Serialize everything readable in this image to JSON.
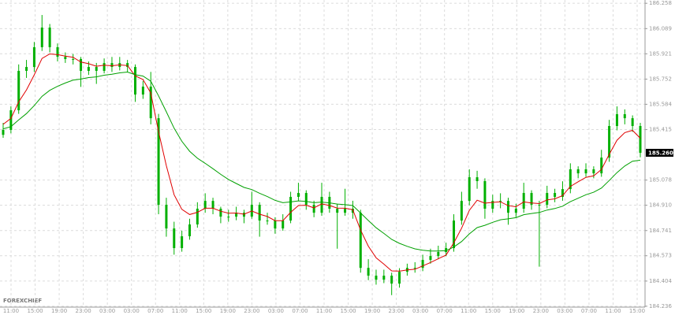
{
  "chart_data": {
    "type": "candlestick",
    "watermark": "FOREXCHIEF",
    "last_price_label": "185.260",
    "candle_color": "#00b000",
    "ylim": [
      184.23,
      186.28
    ],
    "yticks": [
      186.258,
      186.089,
      185.921,
      185.752,
      185.584,
      185.415,
      185.078,
      {
        "value": 184.91,
        "label": "184.910"
      },
      184.741,
      184.573,
      184.404,
      184.236
    ],
    "grid": true,
    "xlabels": [
      "11:00",
      "15:00",
      "19:00",
      "23:00",
      "03:00",
      "03:00",
      "07:00",
      "11:00",
      "15:00",
      "19:00",
      "23:00",
      "03:00",
      "07:00",
      "11:00",
      "15:00",
      "19:00",
      "23:00",
      "03:00",
      "07:00",
      "11:00",
      "15:00",
      "19:00",
      "23:00",
      "03:00",
      "07:00",
      "11:00",
      "15:00"
    ],
    "candles": [
      [
        185.38,
        185.46,
        185.36,
        185.413
      ],
      [
        185.413,
        185.57,
        185.39,
        185.544
      ],
      [
        185.544,
        185.85,
        185.52,
        185.807
      ],
      [
        185.807,
        185.88,
        185.76,
        185.833
      ],
      [
        185.833,
        186.0,
        185.8,
        185.965
      ],
      [
        185.965,
        186.18,
        185.94,
        186.096
      ],
      [
        186.096,
        186.12,
        185.93,
        185.965
      ],
      [
        185.965,
        185.99,
        185.87,
        185.901
      ],
      [
        185.901,
        185.93,
        185.86,
        185.886
      ],
      [
        185.886,
        185.92,
        185.85,
        185.886
      ],
      [
        185.886,
        185.9,
        185.7,
        185.807
      ],
      [
        185.807,
        185.87,
        185.78,
        185.833
      ],
      [
        185.833,
        185.86,
        185.72,
        185.807
      ],
      [
        185.807,
        185.89,
        185.79,
        185.859
      ],
      [
        185.859,
        185.9,
        185.8,
        185.833
      ],
      [
        185.833,
        185.9,
        185.81,
        185.859
      ],
      [
        185.859,
        185.88,
        185.8,
        185.833
      ],
      [
        185.833,
        185.85,
        185.6,
        185.649
      ],
      [
        185.649,
        185.74,
        185.62,
        185.702
      ],
      [
        185.702,
        185.8,
        185.45,
        185.491
      ],
      [
        185.491,
        185.52,
        184.85,
        184.913
      ],
      [
        184.913,
        184.96,
        184.7,
        184.755
      ],
      [
        184.755,
        184.8,
        184.58,
        184.624
      ],
      [
        184.624,
        184.74,
        184.6,
        184.703
      ],
      [
        184.703,
        184.82,
        184.68,
        184.782
      ],
      [
        184.782,
        184.93,
        184.76,
        184.887
      ],
      [
        184.887,
        184.99,
        184.86,
        184.939
      ],
      [
        184.939,
        184.96,
        184.85,
        184.887
      ],
      [
        184.887,
        184.9,
        184.79,
        184.834
      ],
      [
        184.834,
        184.88,
        184.8,
        184.834
      ],
      [
        184.834,
        184.9,
        184.81,
        184.86
      ],
      [
        184.86,
        184.88,
        184.79,
        184.834
      ],
      [
        184.834,
        185.0,
        184.82,
        184.913
      ],
      [
        184.913,
        184.93,
        184.7,
        184.808
      ],
      [
        184.808,
        184.86,
        184.78,
        184.808
      ],
      [
        184.808,
        184.83,
        184.72,
        184.755
      ],
      [
        184.755,
        184.85,
        184.74,
        184.808
      ],
      [
        184.808,
        185.0,
        184.79,
        184.966
      ],
      [
        184.966,
        185.06,
        184.94,
        184.992
      ],
      [
        184.992,
        185.01,
        184.88,
        184.913
      ],
      [
        184.913,
        184.94,
        184.83,
        184.86
      ],
      [
        184.86,
        185.06,
        184.84,
        184.966
      ],
      [
        184.966,
        185.0,
        184.86,
        184.887
      ],
      [
        184.887,
        184.92,
        184.62,
        184.86
      ],
      [
        184.86,
        185.02,
        184.84,
        184.887
      ],
      [
        184.887,
        184.94,
        184.82,
        184.86
      ],
      [
        184.86,
        184.88,
        184.46,
        184.492
      ],
      [
        184.492,
        184.55,
        184.41,
        184.44
      ],
      [
        184.44,
        184.48,
        184.38,
        184.413
      ],
      [
        184.413,
        184.48,
        184.39,
        184.44
      ],
      [
        184.44,
        184.46,
        184.31,
        184.387
      ],
      [
        184.387,
        184.49,
        184.36,
        184.466
      ],
      [
        184.466,
        184.52,
        184.44,
        184.492
      ],
      [
        184.492,
        184.53,
        184.46,
        184.492
      ],
      [
        184.492,
        184.58,
        184.47,
        184.545
      ],
      [
        184.545,
        184.62,
        184.52,
        184.571
      ],
      [
        184.571,
        184.64,
        184.55,
        184.598
      ],
      [
        184.598,
        184.66,
        184.57,
        184.624
      ],
      [
        184.624,
        184.85,
        184.6,
        184.808
      ],
      [
        184.808,
        185.0,
        184.78,
        184.939
      ],
      [
        184.939,
        185.15,
        184.91,
        185.097
      ],
      [
        185.097,
        185.14,
        185.02,
        185.071
      ],
      [
        185.071,
        185.09,
        184.82,
        184.887
      ],
      [
        184.887,
        184.98,
        184.86,
        184.939
      ],
      [
        184.939,
        184.99,
        184.89,
        184.939
      ],
      [
        184.939,
        184.96,
        184.78,
        184.86
      ],
      [
        184.86,
        184.92,
        184.83,
        184.887
      ],
      [
        184.887,
        185.06,
        184.86,
        184.992
      ],
      [
        184.992,
        185.01,
        184.88,
        184.913
      ],
      [
        184.913,
        184.94,
        184.5,
        184.913
      ],
      [
        184.913,
        185.04,
        184.89,
        184.992
      ],
      [
        184.992,
        185.02,
        184.93,
        184.966
      ],
      [
        184.966,
        185.07,
        184.94,
        185.018
      ],
      [
        185.018,
        185.19,
        184.99,
        185.15
      ],
      [
        185.15,
        185.17,
        185.09,
        185.123
      ],
      [
        185.123,
        185.19,
        185.1,
        185.15
      ],
      [
        185.15,
        185.17,
        185.09,
        185.123
      ],
      [
        185.123,
        185.28,
        185.1,
        185.228
      ],
      [
        185.228,
        185.48,
        185.2,
        185.439
      ],
      [
        185.439,
        185.57,
        185.41,
        185.518
      ],
      [
        185.518,
        185.55,
        185.45,
        185.491
      ],
      [
        185.491,
        185.51,
        185.4,
        185.439
      ],
      [
        185.439,
        185.46,
        185.23,
        185.26
      ]
    ],
    "series": [
      {
        "color": "#e00000",
        "values": [
          185.45,
          185.49,
          185.6,
          185.68,
          185.78,
          185.89,
          185.92,
          185.915,
          185.905,
          185.898,
          185.866,
          185.855,
          185.838,
          185.845,
          185.841,
          185.847,
          185.842,
          185.774,
          185.749,
          185.659,
          185.4,
          185.175,
          184.98,
          184.883,
          184.848,
          184.863,
          184.89,
          184.89,
          184.87,
          184.857,
          184.858,
          184.85,
          184.872,
          184.85,
          184.835,
          184.807,
          184.807,
          184.863,
          184.908,
          184.91,
          184.893,
          184.919,
          184.908,
          184.891,
          184.89,
          184.88,
          184.744,
          184.637,
          184.559,
          184.517,
          184.472,
          184.47,
          184.478,
          184.483,
          184.505,
          184.528,
          184.553,
          184.578,
          184.659,
          184.757,
          184.876,
          184.944,
          184.924,
          184.929,
          184.933,
          184.907,
          184.9,
          184.932,
          184.925,
          184.921,
          184.946,
          184.953,
          184.975,
          185.036,
          185.067,
          185.096,
          185.106,
          185.149,
          185.25,
          185.344,
          185.395,
          185.41,
          185.357
        ]
      },
      {
        "color": "#00a000",
        "values": [
          185.42,
          185.435,
          185.48,
          185.522,
          185.575,
          185.637,
          185.677,
          185.704,
          185.726,
          185.745,
          185.752,
          185.762,
          185.767,
          185.778,
          185.785,
          185.794,
          185.799,
          185.781,
          185.772,
          185.738,
          185.64,
          185.534,
          185.424,
          185.337,
          185.27,
          185.224,
          185.19,
          185.154,
          185.116,
          185.082,
          185.055,
          185.029,
          185.015,
          184.99,
          184.968,
          184.943,
          184.927,
          184.932,
          184.939,
          184.936,
          184.927,
          184.931,
          184.926,
          184.918,
          184.914,
          184.908,
          184.858,
          184.808,
          184.76,
          184.722,
          184.682,
          184.656,
          184.636,
          184.619,
          184.61,
          184.605,
          184.605,
          184.607,
          184.631,
          184.668,
          184.719,
          184.761,
          184.776,
          184.796,
          184.813,
          184.819,
          184.827,
          184.847,
          184.855,
          184.862,
          184.878,
          184.888,
          184.904,
          184.934,
          184.957,
          184.98,
          184.997,
          185.025,
          185.075,
          185.128,
          185.172,
          185.204,
          185.211
        ]
      }
    ]
  }
}
